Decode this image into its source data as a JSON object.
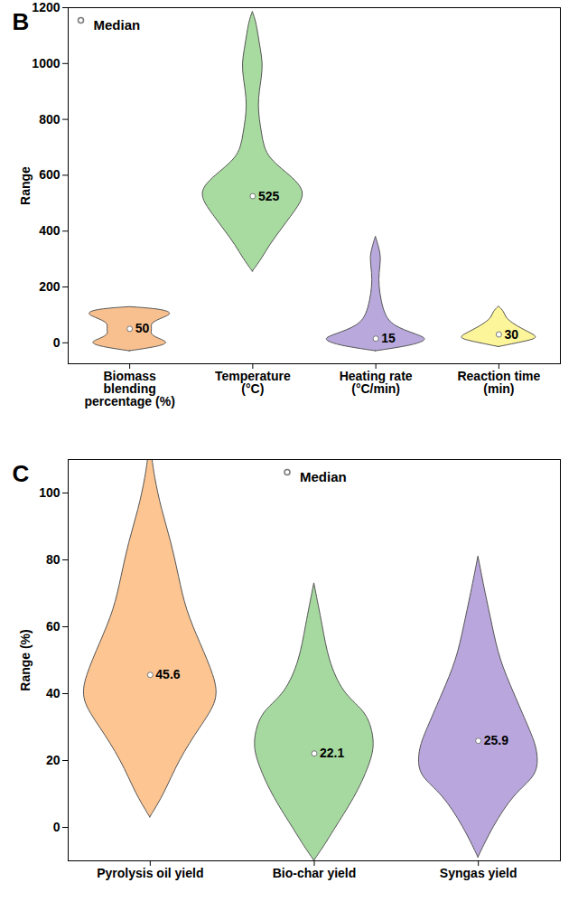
{
  "chart_data": [
    {
      "type": "violin",
      "title": "B",
      "ylabel": "Range",
      "categories": [
        "Biomass blending percentage (%)",
        "Temperature (°C)",
        "Heating rate (°C/min)",
        "Reaction time (min)"
      ],
      "colors": [
        "#f9c08f",
        "#a8dba0",
        "#b8a8dc",
        "#fdf59a"
      ],
      "medians": [
        50,
        525,
        15,
        30
      ],
      "data_labels": true,
      "legend": "upper left",
      "median_label": "Median",
      "ylim": [
        -75,
        1200
      ],
      "yticks": [
        0,
        200,
        400,
        600,
        800,
        1000,
        1200
      ],
      "violins": [
        {
          "y": [
            -30,
            -15,
            0,
            15,
            30,
            50,
            70,
            90,
            105,
            120,
            128
          ],
          "density": [
            0,
            25,
            35,
            25,
            18,
            20,
            18,
            30,
            38,
            28,
            0
          ]
        },
        {
          "y": [
            255,
            300,
            350,
            400,
            450,
            500,
            540,
            580,
            620,
            660,
            700,
            750,
            800,
            850,
            900,
            950,
            1000,
            1050,
            1100,
            1150,
            1185
          ],
          "density": [
            0,
            8,
            15,
            24,
            33,
            42,
            45,
            38,
            26,
            15,
            10,
            8,
            6,
            5,
            6,
            8,
            9,
            7,
            5,
            3,
            0
          ]
        },
        {
          "y": [
            -30,
            -15,
            0,
            15,
            30,
            60,
            100,
            150,
            200,
            250,
            300,
            340,
            380
          ],
          "density": [
            0,
            25,
            40,
            45,
            35,
            15,
            8,
            5,
            3,
            3,
            5,
            3,
            0
          ]
        },
        {
          "y": [
            -15,
            0,
            15,
            30,
            50,
            70,
            90,
            110,
            130
          ],
          "density": [
            0,
            18,
            35,
            30,
            20,
            12,
            6,
            5,
            0
          ]
        }
      ]
    },
    {
      "type": "violin",
      "title": "C",
      "ylabel": "Range (%)",
      "categories": [
        "Pyrolysis oil yield",
        "Bio-char yield",
        "Syngas yield"
      ],
      "colors": [
        "#fcc592",
        "#a6d9a0",
        "#b9a6dc"
      ],
      "medians": [
        45.6,
        22.1,
        25.9
      ],
      "data_labels": true,
      "legend": "upper center",
      "median_label": "Median",
      "ylim": [
        -10,
        110
      ],
      "yticks": [
        0,
        20,
        40,
        60,
        80,
        100
      ],
      "violins": [
        {
          "y": [
            3,
            10,
            20,
            30,
            38,
            45,
            55,
            65,
            75,
            85,
            95,
            105,
            112
          ],
          "density": [
            0,
            10,
            20,
            35,
            48,
            45,
            35,
            25,
            20,
            15,
            8,
            3,
            1
          ]
        },
        {
          "y": [
            -10,
            -5,
            0,
            10,
            20,
            25,
            30,
            35,
            40,
            50,
            60,
            73
          ],
          "density": [
            0,
            8,
            15,
            30,
            40,
            42,
            40,
            35,
            20,
            10,
            6,
            0
          ]
        },
        {
          "y": [
            -9,
            0,
            10,
            15,
            20,
            25,
            30,
            40,
            50,
            60,
            70,
            81
          ],
          "density": [
            0,
            10,
            25,
            40,
            42,
            40,
            35,
            25,
            15,
            10,
            5,
            0
          ]
        }
      ]
    }
  ]
}
